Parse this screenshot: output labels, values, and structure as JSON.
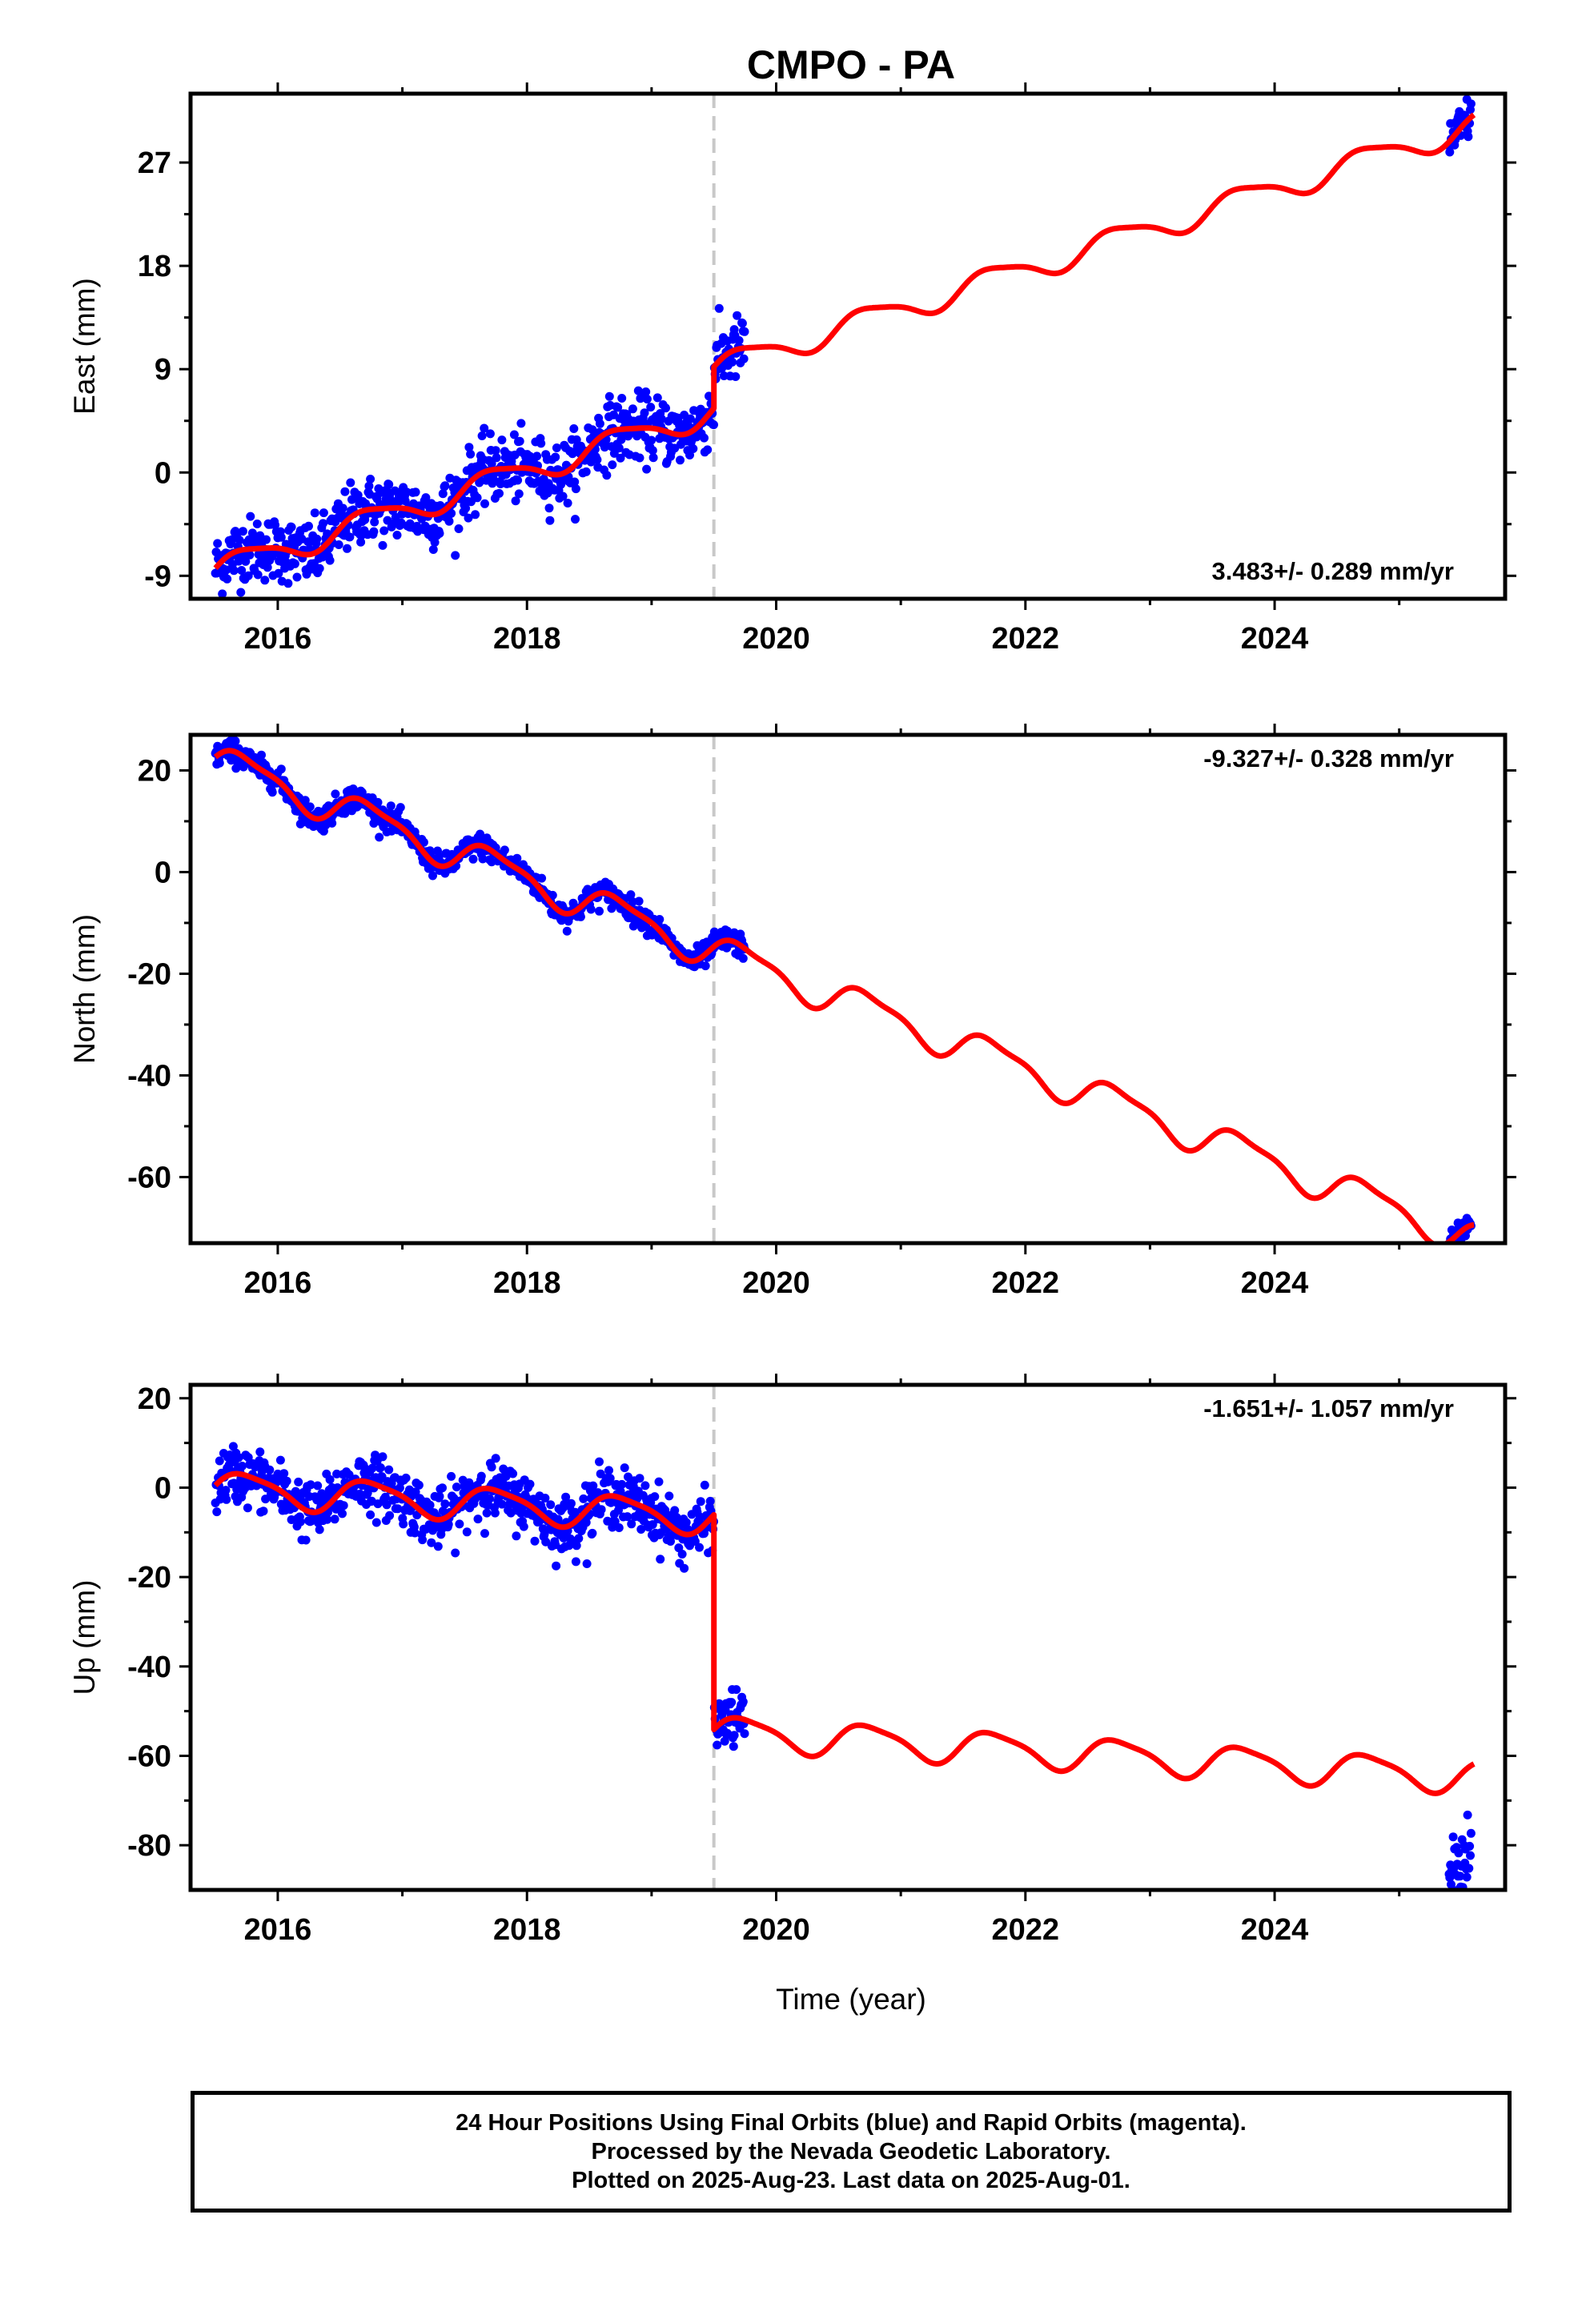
{
  "figure": {
    "title": "CMPO - PA",
    "x_axis_label": "Time (year)"
  },
  "chart_data": [
    {
      "type": "scatter",
      "panel": "east",
      "ylabel": "East (mm)",
      "xlim": [
        2015.3,
        2025.85
      ],
      "ylim": [
        -11,
        33
      ],
      "x_ticks": [
        2016,
        2018,
        2020,
        2022,
        2024
      ],
      "y_ticks": [
        -9,
        0,
        9,
        18,
        27
      ],
      "grid": false,
      "rate_label": "3.483+/- 0.289 mm/yr",
      "rate_label_position": "bottom-right",
      "discontinuity_x": 2019.5,
      "model_line": {
        "name": "model",
        "color": "#ff0000",
        "trend_per_year": 3.483,
        "value_at_start": -8.5,
        "step_at_discontinuity": 3.6,
        "annual_amplitude": 1.1,
        "semiannual_amplitude": 0.25
      },
      "observations": {
        "color": "#0000ff",
        "segments": [
          {
            "x_start": 2015.5,
            "x_end": 2019.75,
            "scatter_sd": 1.4
          },
          {
            "x_start": 2025.4,
            "x_end": 2025.58,
            "scatter_sd": 1.0
          }
        ]
      }
    },
    {
      "type": "scatter",
      "panel": "north",
      "ylabel": "North (mm)",
      "xlim": [
        2015.3,
        2025.85
      ],
      "ylim": [
        -73,
        27
      ],
      "x_ticks": [
        2016,
        2018,
        2020,
        2022,
        2024
      ],
      "y_ticks": [
        -60,
        -40,
        -20,
        0,
        20
      ],
      "grid": false,
      "rate_label": "-9.327+/- 0.328 mm/yr",
      "rate_label_position": "top-right",
      "discontinuity_x": 2019.5,
      "model_line": {
        "name": "model",
        "color": "#ff0000",
        "trend_per_year": -9.327,
        "value_at_start": 22,
        "step_at_discontinuity": 0,
        "annual_amplitude": 3.2,
        "semiannual_amplitude": 1.0
      },
      "observations": {
        "color": "#0000ff",
        "segments": [
          {
            "x_start": 2015.5,
            "x_end": 2019.75,
            "scatter_sd": 1.2
          },
          {
            "x_start": 2025.4,
            "x_end": 2025.58,
            "scatter_sd": 1.0
          }
        ]
      }
    },
    {
      "type": "scatter",
      "panel": "up",
      "ylabel": "Up (mm)",
      "xlim": [
        2015.3,
        2025.85
      ],
      "ylim": [
        -90,
        23
      ],
      "x_ticks": [
        2016,
        2018,
        2020,
        2022,
        2024
      ],
      "y_ticks": [
        -80,
        -60,
        -40,
        -20,
        0,
        20
      ],
      "grid": false,
      "rate_label": "-1.651+/- 1.057 mm/yr",
      "rate_label_position": "top-right",
      "discontinuity_x": 2019.5,
      "model_line": {
        "name": "model",
        "color": "#ff0000",
        "trend_per_year": -1.651,
        "value_at_start": 0,
        "step_at_discontinuity": -48,
        "annual_amplitude": 3.6,
        "semiannual_amplitude": 0.8
      },
      "observations": {
        "color": "#0000ff",
        "segments": [
          {
            "x_start": 2015.5,
            "x_end": 2019.75,
            "scatter_sd": 3.2
          },
          {
            "x_start": 2025.4,
            "x_end": 2025.58,
            "scatter_sd": 3.5,
            "offset_from_model": -20
          }
        ]
      }
    }
  ],
  "footer": {
    "line1": "24 Hour Positions Using Final Orbits (blue) and Rapid Orbits (magenta).",
    "line2": "Processed by the Nevada Geodetic Laboratory.",
    "line3": "Plotted on 2025-Aug-23. Last data on 2025-Aug-01."
  }
}
